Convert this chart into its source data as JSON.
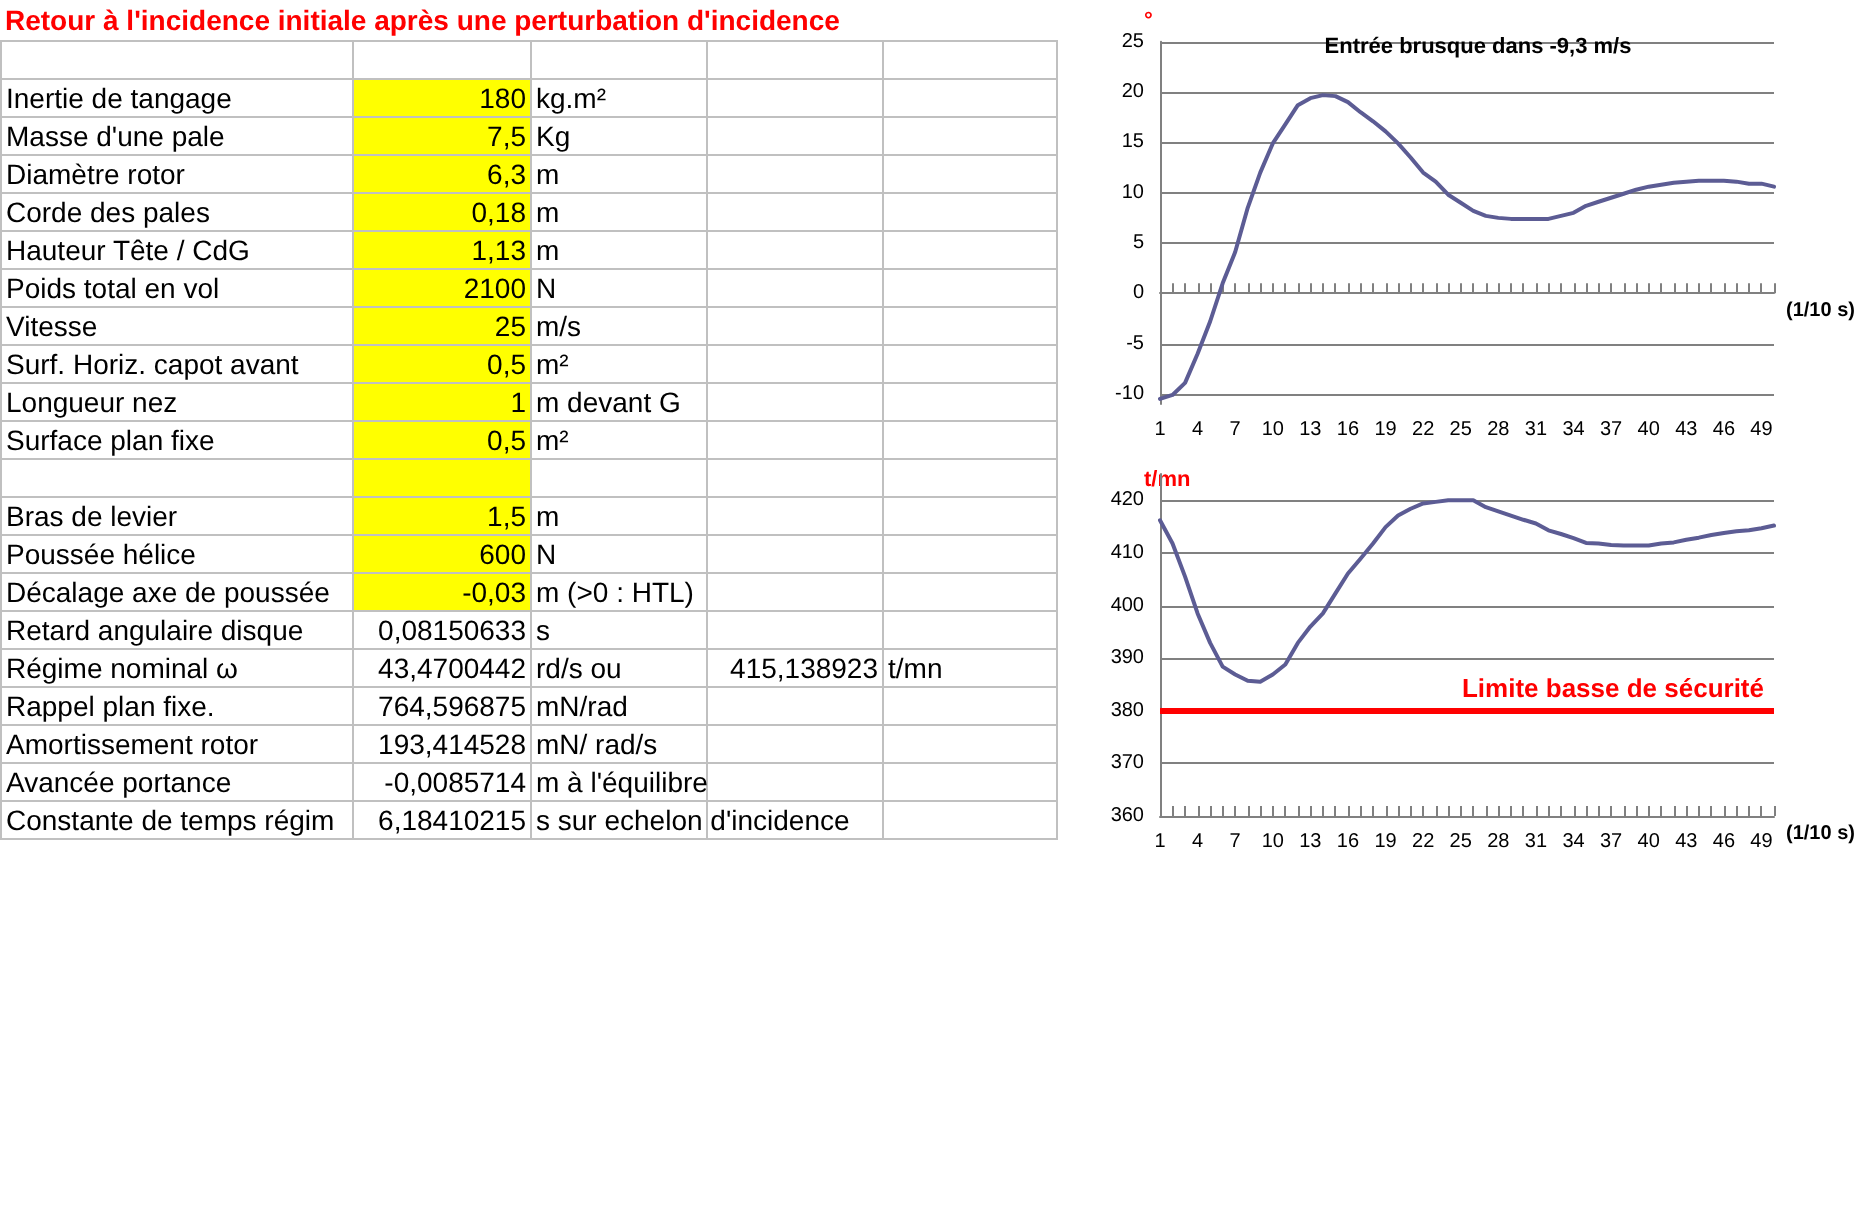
{
  "chart_data": [
    {
      "type": "other",
      "title": "Retour à l'incidence initiale après une perturbation d'incidence",
      "y_categories": [
        null,
        "Inertie de tangage",
        "Masse  d'une pale",
        "Diamètre rotor",
        "Corde des pales",
        "Hauteur Tête / CdG",
        "Poids total en vol",
        "Vitesse",
        "Surf. Horiz.  capot avant",
        "Longueur nez",
        "Surface plan fixe",
        null,
        "Bras de levier",
        "Poussée hélice",
        "Décalage axe de poussée",
        "Retard  angulaire disque",
        "Régime nominal ω",
        "Rappel  plan fixe.",
        "Amortissement rotor",
        "Avancée portance",
        "Constante de temps régim"
      ],
      "cell_labels": [
        [
          null,
          null,
          null,
          null
        ],
        [
          "180",
          "kg.m²",
          null,
          null
        ],
        [
          "7,5",
          "Kg",
          null,
          null
        ],
        [
          "6,3",
          "m",
          null,
          null
        ],
        [
          "0,18",
          "m",
          null,
          null
        ],
        [
          "1,13",
          "m",
          null,
          null
        ],
        [
          "2100",
          "N",
          null,
          null
        ],
        [
          "25",
          "m/s",
          null,
          null
        ],
        [
          "0,5",
          "m²",
          null,
          null
        ],
        [
          "1",
          "m devant G",
          null,
          null
        ],
        [
          "0,5",
          "m²",
          null,
          null
        ],
        [
          null,
          null,
          null,
          null
        ],
        [
          "1,5",
          "m",
          null,
          null
        ],
        [
          "600",
          "N",
          null,
          null
        ],
        [
          "-0,03",
          "m  (>0 : HTL)",
          null,
          null
        ],
        [
          "0,08150633",
          "s",
          null,
          null
        ],
        [
          "43,4700442",
          "rd/s ou",
          "415,138923",
          "t/mn"
        ],
        [
          "764,596875",
          "mN/rad",
          null,
          null
        ],
        [
          "193,414528",
          "mN/ rad/s",
          null,
          null
        ],
        [
          "-0,0085714",
          "m à l'équilibre",
          null,
          null
        ],
        [
          "6,18410215",
          "s sur echelon d'incidence",
          null,
          null
        ]
      ],
      "colors": [
        null,
        "#ffff00",
        "#ffff00",
        "#ffff00",
        "#ffff00",
        "#ffff00",
        "#ffff00",
        "#ffff00",
        "#ffff00",
        "#ffff00",
        "#ffff00",
        "#ffff00",
        "#ffff00",
        "#ffff00",
        "#ffff00",
        null,
        null,
        null,
        null,
        null,
        null
      ]
    },
    {
      "type": "line",
      "title": "Entrée brusque dans -9,3 m/s",
      "xlabel": "(1/10 s)",
      "ylabel": "°",
      "categories": [
        "1",
        null,
        null,
        "4",
        null,
        null,
        "7",
        null,
        null,
        "10",
        null,
        null,
        "13",
        null,
        null,
        "16",
        null,
        null,
        "19",
        null,
        null,
        "22",
        null,
        null,
        "25",
        null,
        null,
        "28",
        null,
        null,
        "31",
        null,
        null,
        "34",
        null,
        null,
        "37",
        null,
        null,
        "40",
        null,
        null,
        "43",
        null,
        null,
        "46",
        null,
        null,
        "49",
        null
      ],
      "series": [
        {
          "color": "#5c5c94",
          "values": [
            -10.5,
            -10.1,
            -8.9,
            -6,
            -2.8,
            1,
            4.1,
            8.5,
            12,
            14.9,
            16.8,
            18.7,
            19.4,
            19.7,
            19.6,
            19,
            18,
            17.1,
            16.1,
            14.9,
            13.5,
            12,
            11.1,
            9.8,
            9,
            8.2,
            7.7,
            7.5,
            7.4,
            7.4,
            7.4,
            7.4,
            7.7,
            8,
            8.7,
            9.1,
            9.5,
            9.9,
            10.3,
            10.6,
            10.8,
            11,
            11.1,
            11.2,
            11.2,
            11.2,
            11.1,
            10.9,
            10.9,
            10.6
          ]
        }
      ],
      "ylim": [
        -11,
        25
      ],
      "yticks": [
        -10,
        -5,
        0,
        5,
        10,
        15,
        20,
        25
      ],
      "grid": "y",
      "marker": "none",
      "line_style": "solid"
    },
    {
      "type": "line",
      "xlabel": "(1/10 s)",
      "ylabel": "t/mn",
      "categories": [
        "1",
        null,
        null,
        "4",
        null,
        null,
        "7",
        null,
        null,
        "10",
        null,
        null,
        "13",
        null,
        null,
        "16",
        null,
        null,
        "19",
        null,
        null,
        "22",
        null,
        null,
        "25",
        null,
        null,
        "28",
        null,
        null,
        "31",
        null,
        null,
        "34",
        null,
        null,
        "37",
        null,
        null,
        "40",
        null,
        null,
        "43",
        null,
        null,
        "46",
        null,
        null,
        "49",
        null
      ],
      "series": [
        {
          "color": "#5c5c94",
          "values": [
            416.2,
            411.8,
            405.5,
            398.5,
            392.9,
            388.4,
            386.9,
            385.7,
            385.5,
            386.9,
            388.8,
            392.9,
            396,
            398.5,
            402.3,
            406.1,
            408.9,
            411.8,
            414.9,
            417.1,
            418.4,
            419.4,
            419.7,
            420,
            420,
            420,
            418.7,
            417.9,
            417.1,
            416.3,
            415.6,
            414.3,
            413.6,
            412.8,
            411.9,
            411.8,
            411.5,
            411.4,
            411.4,
            411.4,
            411.8,
            412,
            412.5,
            412.9,
            413.4,
            413.8,
            414.1,
            414.3,
            414.7,
            415.2
          ]
        }
      ],
      "ylim": [
        360,
        425
      ],
      "yticks": [
        360,
        370,
        380,
        390,
        400,
        410,
        420
      ],
      "grid": "y",
      "marker": "none",
      "line_style": "solid",
      "ref_lines": [
        {
          "axis": "y",
          "value": 380,
          "label": "Limite basse de sécurité",
          "color": "#ff0000"
        }
      ]
    }
  ]
}
